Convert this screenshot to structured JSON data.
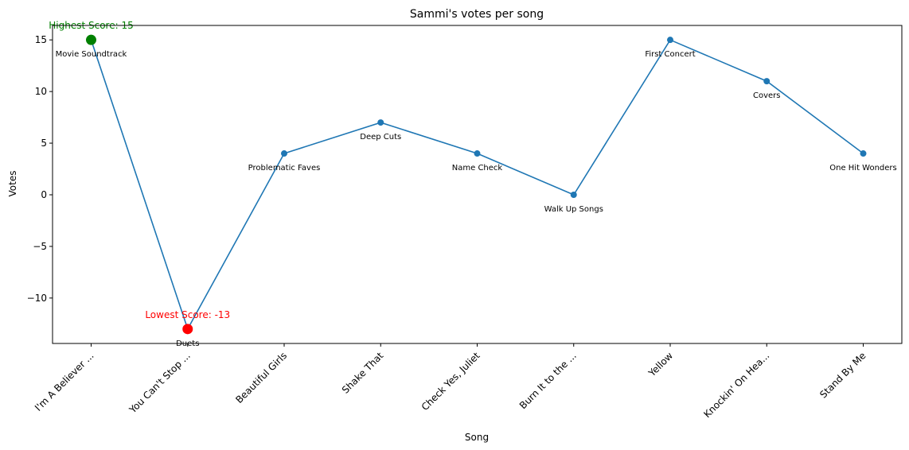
{
  "chart_data": {
    "type": "line",
    "title": "Sammi's votes per song",
    "xlabel": "Song",
    "ylabel": "Votes",
    "categories": [
      "I'm A Believer ...",
      "You Can't Stop ...",
      "Beautiful Girls",
      "Shake That",
      "Check Yes, Juliet",
      "Burn It to the ...",
      "Yellow",
      "Knockin' On Hea...",
      "Stand By Me"
    ],
    "values": [
      15,
      -13,
      4,
      7,
      4,
      0,
      15,
      11,
      4
    ],
    "point_labels": [
      "Movie Soundtrack",
      "Duets",
      "Problematic Faves",
      "Deep Cuts",
      "Name Check",
      "Walk Up Songs",
      "First Concert",
      "Covers",
      "One Hit Wonders"
    ],
    "ylim": [
      -14.4,
      16.4
    ],
    "yticks": [
      15,
      10,
      5,
      0,
      -5,
      -10
    ],
    "ytick_labels": [
      "15",
      "10",
      "5",
      "0",
      "−5",
      "−10"
    ],
    "grid": false,
    "line_color": "#1f77b4",
    "highlights": [
      {
        "index": 0,
        "text": "Highest Score: 15",
        "color": "#008000"
      },
      {
        "index": 1,
        "text": "Lowest Score: -13",
        "color": "#ff0000"
      }
    ]
  }
}
